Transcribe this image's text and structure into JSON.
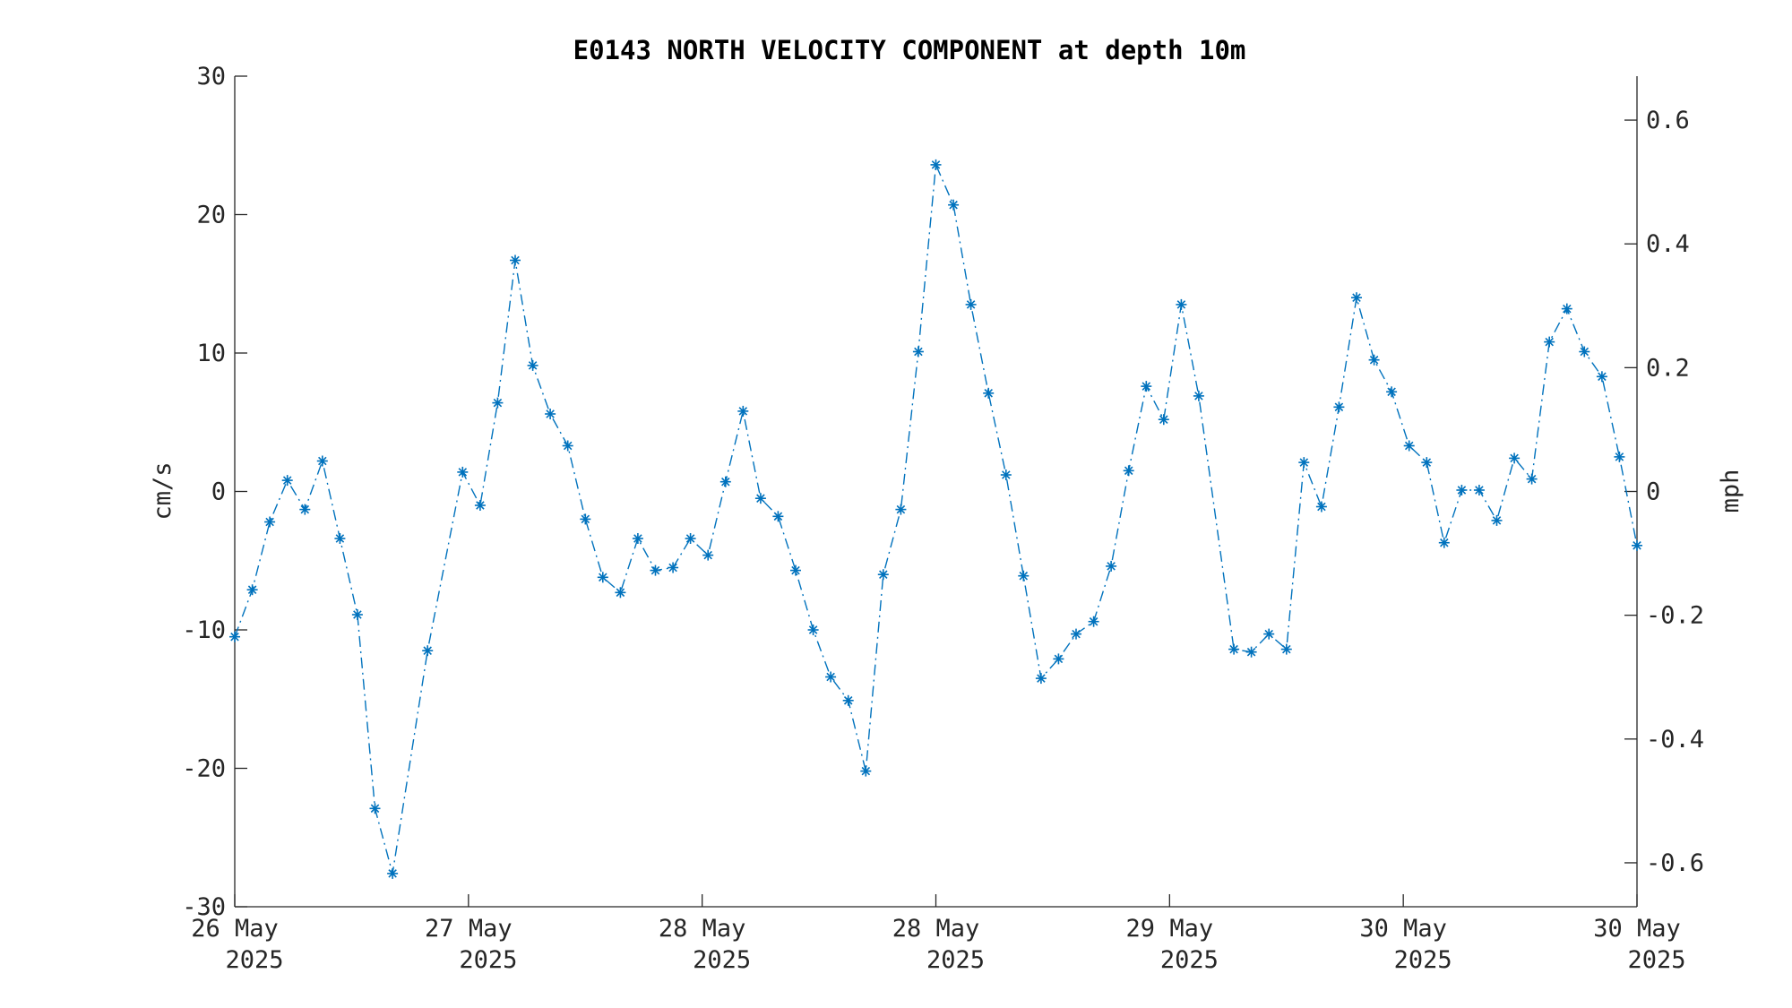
{
  "chart_data": {
    "type": "line",
    "title": "E0143 NORTH VELOCITY COMPONENT at depth 10m",
    "ylabel_left": "cm/s",
    "ylabel_right": "mph",
    "ylim": [
      -30,
      30
    ],
    "ylim_right": [
      -0.671,
      0.671
    ],
    "x_range": [
      "2025-05-26T00:00",
      "2025-05-31T00:00"
    ],
    "x_ticks": [
      {
        "line1": "26 May",
        "line2": "2025"
      },
      {
        "line1": "27 May",
        "line2": "2025"
      },
      {
        "line1": "28 May",
        "line2": "2025"
      },
      {
        "line1": "28 May",
        "line2": "2025"
      },
      {
        "line1": "29 May",
        "line2": "2025"
      },
      {
        "line1": "30 May",
        "line2": "2025"
      },
      {
        "line1": "30 May",
        "line2": "2025"
      }
    ],
    "y_ticks_left": [
      "30",
      "20",
      "10",
      "0",
      "-10",
      "-20",
      "-30"
    ],
    "y_tick_values_left": [
      30,
      20,
      10,
      0,
      -10,
      -20,
      -30
    ],
    "y_ticks_right": [
      "0.6",
      "0.4",
      "0.2",
      "0",
      "-0.2",
      "-0.4",
      "-0.6"
    ],
    "y_tick_values_right": [
      0.6,
      0.4,
      0.2,
      0,
      -0.2,
      -0.4,
      -0.6
    ],
    "grid": false,
    "series": [
      {
        "color": "#0072BD",
        "line_style": "dash-dot",
        "marker": "asterisk",
        "x": [
          "2025-05-26T00:00",
          "2025-05-26T01:30",
          "2025-05-26T03:00",
          "2025-05-26T04:30",
          "2025-05-26T06:00",
          "2025-05-26T07:30",
          "2025-05-26T09:00",
          "2025-05-26T10:30",
          "2025-05-26T12:00",
          "2025-05-26T13:30",
          "2025-05-26T16:30",
          "2025-05-26T19:30",
          "2025-05-26T21:00",
          "2025-05-26T22:30",
          "2025-05-27T00:00",
          "2025-05-27T01:30",
          "2025-05-27T03:00",
          "2025-05-27T04:30",
          "2025-05-27T06:00",
          "2025-05-27T07:30",
          "2025-05-27T09:00",
          "2025-05-27T10:30",
          "2025-05-27T12:00",
          "2025-05-27T13:30",
          "2025-05-27T15:00",
          "2025-05-27T16:30",
          "2025-05-27T18:00",
          "2025-05-27T19:30",
          "2025-05-27T21:00",
          "2025-05-27T22:30",
          "2025-05-28T00:00",
          "2025-05-28T01:30",
          "2025-05-28T03:00",
          "2025-05-28T04:30",
          "2025-05-28T06:00",
          "2025-05-28T07:30",
          "2025-05-28T09:00",
          "2025-05-28T10:30",
          "2025-05-28T12:00",
          "2025-05-28T13:30",
          "2025-05-28T15:00",
          "2025-05-28T16:30",
          "2025-05-28T18:00",
          "2025-05-28T19:30",
          "2025-05-28T21:00",
          "2025-05-28T22:30",
          "2025-05-29T00:00",
          "2025-05-29T01:30",
          "2025-05-29T03:00",
          "2025-05-29T04:30",
          "2025-05-29T06:00",
          "2025-05-29T07:30",
          "2025-05-29T09:00",
          "2025-05-29T10:30",
          "2025-05-29T13:30",
          "2025-05-29T15:00",
          "2025-05-29T16:30",
          "2025-05-29T18:00",
          "2025-05-29T19:30",
          "2025-05-29T21:00",
          "2025-05-29T22:30",
          "2025-05-30T00:00",
          "2025-05-30T01:30",
          "2025-05-30T03:00",
          "2025-05-30T04:30",
          "2025-05-30T06:00",
          "2025-05-30T07:30",
          "2025-05-30T09:00",
          "2025-05-30T10:30",
          "2025-05-30T12:00",
          "2025-05-30T13:30",
          "2025-05-30T15:00",
          "2025-05-30T16:30",
          "2025-05-30T18:00",
          "2025-05-30T19:30",
          "2025-05-30T21:00",
          "2025-05-30T22:30",
          "2025-05-31T00:00"
        ],
        "values": [
          -10.5,
          -7.1,
          -2.2,
          0.8,
          -1.3,
          2.2,
          -3.4,
          -8.9,
          -22.9,
          -27.6,
          -11.5,
          1.4,
          -1.0,
          6.4,
          16.7,
          9.1,
          5.6,
          3.3,
          -2.0,
          -6.2,
          -7.3,
          -3.4,
          -5.7,
          -5.5,
          -3.4,
          -4.6,
          0.7,
          5.8,
          -0.5,
          -1.8,
          -5.7,
          -10.0,
          -13.4,
          -15.1,
          -20.2,
          -6.0,
          -1.3,
          10.1,
          23.6,
          20.7,
          13.5,
          7.1,
          1.2,
          -6.1,
          -13.5,
          -12.1,
          -10.3,
          -9.4,
          -5.4,
          1.5,
          7.6,
          5.2,
          13.5,
          6.9,
          -11.4,
          -11.6,
          -10.3,
          -11.4,
          2.1,
          -1.1,
          6.1,
          14.0,
          9.5,
          7.2,
          3.3,
          2.1,
          -3.7,
          0.1,
          0.1,
          -2.1,
          2.4,
          0.9,
          10.8,
          13.2,
          10.1,
          8.3,
          2.5,
          -3.9
        ]
      }
    ]
  }
}
